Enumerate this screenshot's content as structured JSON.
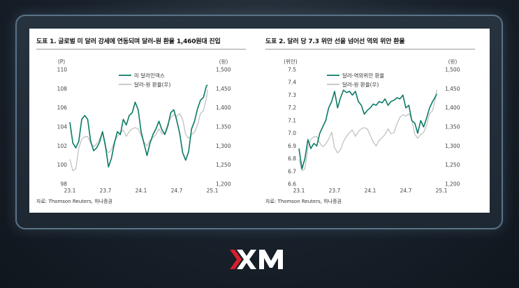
{
  "logo_text": "XM",
  "colors": {
    "green": "#0a7a65",
    "gray": "#c2c2c2",
    "logo_red": "#d81e2c"
  },
  "chart_data": [
    {
      "type": "line",
      "title": "도표 1. 글로벌 미 달러 강세에 연동되며 달러-원 환율 1,460원대 진입",
      "left_unit": "(P)",
      "right_unit": "(원)",
      "x_ticks": [
        "23.1",
        "23.7",
        "24.1",
        "24.7",
        "25.1"
      ],
      "x_range": [
        0,
        24
      ],
      "ylim_left": [
        98,
        110
      ],
      "y_ticks_left": [
        "110",
        "108",
        "106",
        "104",
        "102",
        "100",
        "98"
      ],
      "ylim_right": [
        1200,
        1500
      ],
      "y_ticks_right": [
        "1,500",
        "1,450",
        "1,400",
        "1,350",
        "1,300",
        "1,250",
        "1,200"
      ],
      "series": [
        {
          "name": "미 달러인덱스",
          "axis": "left",
          "color": "#0a7a65",
          "x": [
            0,
            0.5,
            1,
            1.5,
            2,
            2.5,
            3,
            3.5,
            4,
            4.5,
            5,
            5.5,
            6,
            6.5,
            7,
            7.5,
            8,
            8.5,
            9,
            9.5,
            10,
            10.5,
            11,
            11.5,
            12,
            12.5,
            13,
            13.5,
            14,
            14.5,
            15,
            15.5,
            16,
            16.5,
            17,
            17.5,
            18,
            18.5,
            19,
            19.5,
            20,
            20.5,
            21,
            21.5,
            22,
            22.5,
            23,
            23.2
          ],
          "values": [
            104.5,
            102.3,
            101.8,
            102.5,
            104.8,
            105.2,
            104.8,
            102.5,
            101.5,
            101.8,
            102.4,
            103.5,
            102.0,
            99.8,
            100.7,
            102.3,
            103.5,
            103.2,
            104.8,
            104.2,
            105.2,
            105.5,
            106.6,
            105.8,
            103.5,
            102.2,
            101.0,
            102.3,
            103.2,
            103.8,
            104.6,
            103.7,
            103.2,
            104.1,
            105.5,
            105.8,
            104.7,
            103.3,
            101.3,
            100.5,
            101.4,
            103.8,
            104.6,
            105.9,
            106.8,
            107.1,
            108.3,
            108.4
          ]
        },
        {
          "name": "달러-원 환율(우)",
          "axis": "right",
          "color": "#c2c2c2",
          "x": [
            0,
            0.5,
            1,
            1.5,
            2,
            2.5,
            3,
            3.5,
            4,
            4.5,
            5,
            5.5,
            6,
            6.5,
            7,
            7.5,
            8,
            8.5,
            9,
            9.5,
            10,
            10.5,
            11,
            11.5,
            12,
            12.5,
            13,
            13.5,
            14,
            14.5,
            15,
            15.5,
            16,
            16.5,
            17,
            17.5,
            18,
            18.5,
            19,
            19.5,
            20,
            20.5,
            21,
            21.5,
            22,
            22.5,
            23,
            23.2
          ],
          "values": [
            1265,
            1235,
            1240,
            1295,
            1318,
            1324,
            1325,
            1308,
            1298,
            1305,
            1318,
            1336,
            1295,
            1282,
            1290,
            1312,
            1325,
            1335,
            1342,
            1325,
            1338,
            1345,
            1348,
            1345,
            1328,
            1310,
            1300,
            1315,
            1322,
            1330,
            1345,
            1332,
            1335,
            1358,
            1375,
            1382,
            1378,
            1385,
            1370,
            1330,
            1320,
            1330,
            1336,
            1355,
            1385,
            1393,
            1425,
            1448
          ]
        }
      ]
    },
    {
      "type": "line",
      "title": "도표 2. 달러 당 7.3 위안 선을 넘어선 역외 위안 환율",
      "left_unit": "(위안)",
      "right_unit": "(원)",
      "x_ticks": [
        "23.1",
        "23.7",
        "24.1",
        "24.7",
        "25.1"
      ],
      "x_range": [
        0,
        24
      ],
      "ylim_left": [
        6.6,
        7.5
      ],
      "y_ticks_left": [
        "7.5",
        "7.4",
        "7.3",
        "7.2",
        "7.1",
        "7.0",
        "6.9",
        "6.8",
        "6.7",
        "6.6"
      ],
      "ylim_right": [
        1200,
        1500
      ],
      "y_ticks_right": [
        "1,500",
        "1,450",
        "1,400",
        "1,350",
        "1,300",
        "1,250",
        "1,200"
      ],
      "series": [
        {
          "name": "달러-역외위안 환율",
          "axis": "left",
          "color": "#0a7a65",
          "x": [
            0,
            0.5,
            1,
            1.5,
            2,
            2.5,
            3,
            3.5,
            4,
            4.5,
            5,
            5.5,
            6,
            6.5,
            7,
            7.5,
            8,
            8.5,
            9,
            9.5,
            10,
            10.5,
            11,
            11.5,
            12,
            12.5,
            13,
            13.5,
            14,
            14.5,
            15,
            15.5,
            16,
            16.5,
            17,
            17.5,
            18,
            18.5,
            19,
            19.5,
            20,
            20.5,
            21,
            21.5,
            22,
            22.5,
            23,
            23.2
          ],
          "values": [
            6.88,
            6.72,
            6.8,
            6.95,
            6.88,
            6.92,
            6.9,
            7.0,
            7.05,
            7.1,
            7.2,
            7.25,
            7.33,
            7.2,
            7.28,
            7.34,
            7.32,
            7.33,
            7.3,
            7.33,
            7.25,
            7.22,
            7.15,
            7.18,
            7.2,
            7.23,
            7.22,
            7.25,
            7.24,
            7.27,
            7.22,
            7.25,
            7.26,
            7.28,
            7.27,
            7.3,
            7.2,
            7.22,
            7.1,
            7.08,
            7.0,
            7.1,
            7.05,
            7.12,
            7.2,
            7.25,
            7.29,
            7.31
          ]
        },
        {
          "name": "달러-원 환율(우)",
          "axis": "right",
          "color": "#c2c2c2",
          "x": [
            0,
            0.5,
            1,
            1.5,
            2,
            2.5,
            3,
            3.5,
            4,
            4.5,
            5,
            5.5,
            6,
            6.5,
            7,
            7.5,
            8,
            8.5,
            9,
            9.5,
            10,
            10.5,
            11,
            11.5,
            12,
            12.5,
            13,
            13.5,
            14,
            14.5,
            15,
            15.5,
            16,
            16.5,
            17,
            17.5,
            18,
            18.5,
            19,
            19.5,
            20,
            20.5,
            21,
            21.5,
            22,
            22.5,
            23,
            23.2
          ],
          "values": [
            1265,
            1235,
            1240,
            1295,
            1318,
            1324,
            1325,
            1308,
            1298,
            1305,
            1318,
            1336,
            1295,
            1282,
            1290,
            1312,
            1325,
            1335,
            1342,
            1325,
            1338,
            1345,
            1348,
            1345,
            1328,
            1310,
            1300,
            1315,
            1322,
            1330,
            1345,
            1332,
            1335,
            1358,
            1375,
            1382,
            1378,
            1385,
            1370,
            1330,
            1320,
            1330,
            1336,
            1355,
            1385,
            1393,
            1425,
            1448
          ]
        }
      ]
    }
  ],
  "source_note": "자료: Thomson Reuters, 하나증권"
}
